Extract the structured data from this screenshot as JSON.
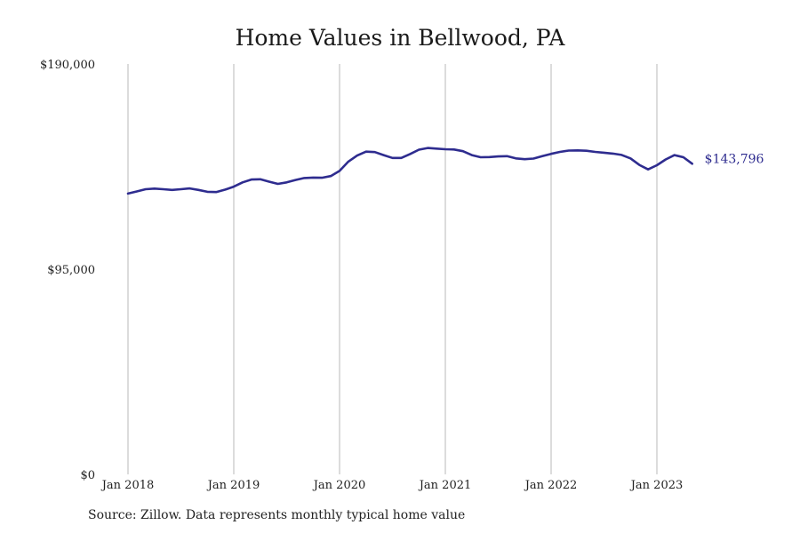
{
  "chart_data": {
    "type": "line",
    "title": "Home Values in Bellwood, PA",
    "source": "Source: Zillow. Data represents monthly typical home value",
    "ylim": [
      0,
      190000
    ],
    "y_ticks": [
      0,
      95000,
      190000
    ],
    "y_tick_labels": [
      "$0",
      "$95,000",
      "$190,000"
    ],
    "x_tick_labels": [
      "Jan 2018",
      "Jan 2019",
      "Jan 2020",
      "Jan 2021",
      "Jan 2022",
      "Jan 2023"
    ],
    "x_ticks": [
      "2018-01",
      "2019-01",
      "2020-01",
      "2021-01",
      "2022-01",
      "2023-01"
    ],
    "grid": "vertical",
    "line_color": "#2e2c8f",
    "end_label": "$143,796",
    "series": [
      {
        "x": [
          "2018-01",
          "2018-02",
          "2018-03",
          "2018-04",
          "2018-05",
          "2018-06",
          "2018-07",
          "2018-08",
          "2018-09",
          "2018-10",
          "2018-11",
          "2018-12",
          "2019-01",
          "2019-02",
          "2019-03",
          "2019-04",
          "2019-05",
          "2019-06",
          "2019-07",
          "2019-08",
          "2019-09",
          "2019-10",
          "2019-11",
          "2019-12",
          "2020-01",
          "2020-02",
          "2020-03",
          "2020-04",
          "2020-05",
          "2020-06",
          "2020-07",
          "2020-08",
          "2020-09",
          "2020-10",
          "2020-11",
          "2020-12",
          "2021-01",
          "2021-02",
          "2021-03",
          "2021-04",
          "2021-05",
          "2021-06",
          "2021-07",
          "2021-08",
          "2021-09",
          "2021-10",
          "2021-11",
          "2021-12",
          "2022-01",
          "2022-02",
          "2022-03",
          "2022-04",
          "2022-05",
          "2022-06",
          "2022-07",
          "2022-08",
          "2022-09",
          "2022-10",
          "2022-11",
          "2022-12",
          "2023-01",
          "2023-02",
          "2023-03",
          "2023-04",
          "2023-05"
        ],
        "y": [
          130000,
          131000,
          132000,
          132300,
          132000,
          131700,
          132000,
          132400,
          131700,
          130800,
          130700,
          131800,
          133200,
          135200,
          136500,
          136600,
          135500,
          134500,
          135200,
          136300,
          137200,
          137400,
          137300,
          138100,
          140500,
          144800,
          147600,
          149400,
          149200,
          147800,
          146500,
          146500,
          148300,
          150300,
          151100,
          150800,
          150500,
          150400,
          149600,
          147800,
          146800,
          146900,
          147200,
          147300,
          146300,
          145900,
          146200,
          147300,
          148400,
          149300,
          149900,
          150000,
          149800,
          149300,
          148900,
          148500,
          147900,
          146300,
          143300,
          141200,
          143100,
          145800,
          147800,
          146800,
          143796
        ]
      }
    ]
  }
}
